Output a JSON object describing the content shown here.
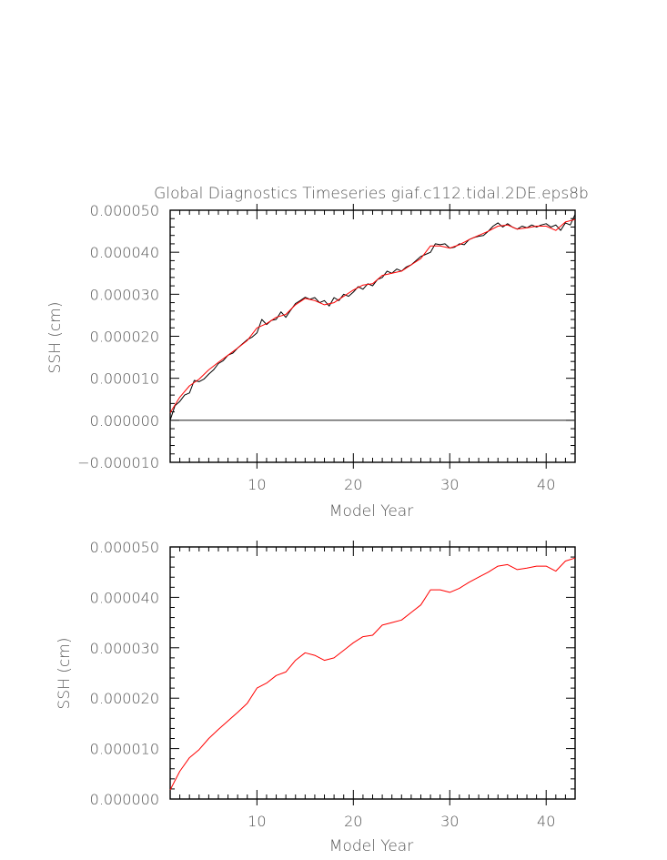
{
  "chart_data": [
    {
      "type": "line",
      "title": "Global Diagnostics Timeseries giaf.c112.tidal.2DE.eps8b",
      "xlabel": "Model Year",
      "ylabel": "SSH (cm)",
      "xlim": [
        1,
        43
      ],
      "ylim": [
        -1e-05,
        5e-05
      ],
      "x_ticks": [
        10,
        20,
        30,
        40
      ],
      "x_tick_labels": [
        "10",
        "20",
        "30",
        "40"
      ],
      "y_ticks": [
        -1e-05,
        0,
        1e-05,
        2e-05,
        3e-05,
        4e-05,
        5e-05
      ],
      "y_tick_labels": [
        "−0.000010",
        "0.000000",
        "0.000010",
        "0.000020",
        "0.000030",
        "0.000040",
        "0.000050"
      ],
      "zero_line": true,
      "grid": false,
      "legend": "none",
      "series": [
        {
          "color": "#000000",
          "resolution": "monthly",
          "x": [
            1.0,
            1.5,
            2.0,
            2.5,
            3.0,
            3.5,
            4.0,
            4.5,
            5.0,
            5.5,
            6.0,
            6.5,
            7.0,
            7.5,
            8.0,
            8.5,
            9.0,
            9.5,
            10.0,
            10.5,
            11.0,
            11.5,
            12.0,
            12.5,
            13.0,
            13.5,
            14.0,
            14.5,
            15.0,
            15.5,
            16.0,
            16.5,
            17.0,
            17.5,
            18.0,
            18.5,
            19.0,
            19.5,
            20.0,
            20.5,
            21.0,
            21.5,
            22.0,
            22.5,
            23.0,
            23.5,
            24.0,
            24.5,
            25.0,
            25.5,
            26.0,
            26.5,
            27.0,
            27.5,
            28.0,
            28.5,
            29.0,
            29.5,
            30.0,
            30.5,
            31.0,
            31.5,
            32.0,
            32.5,
            33.0,
            33.5,
            34.0,
            34.5,
            35.0,
            35.5,
            36.0,
            36.5,
            37.0,
            37.5,
            38.0,
            38.5,
            39.0,
            39.5,
            40.0,
            40.5,
            41.0,
            41.5,
            42.0,
            42.5,
            43.0
          ],
          "y": [
            0.0,
            3.5e-06,
            4.5e-06,
            6e-06,
            6.5e-06,
            9.5e-06,
            9.2e-06,
            9.8e-06,
            1.1e-05,
            1.2e-05,
            1.35e-05,
            1.42e-05,
            1.55e-05,
            1.6e-05,
            1.72e-05,
            1.82e-05,
            1.92e-05,
            1.98e-05,
            2.08e-05,
            2.4e-05,
            2.28e-05,
            2.38e-05,
            2.4e-05,
            2.58e-05,
            2.45e-05,
            2.62e-05,
            2.78e-05,
            2.85e-05,
            2.93e-05,
            2.88e-05,
            2.92e-05,
            2.8e-05,
            2.85e-05,
            2.72e-05,
            2.92e-05,
            2.85e-05,
            3e-05,
            2.95e-05,
            3.05e-05,
            3.18e-05,
            3.12e-05,
            3.25e-05,
            3.2e-05,
            3.35e-05,
            3.4e-05,
            3.55e-05,
            3.5e-05,
            3.6e-05,
            3.55e-05,
            3.65e-05,
            3.7e-05,
            3.8e-05,
            3.9e-05,
            3.95e-05,
            4e-05,
            4.2e-05,
            4.18e-05,
            4.2e-05,
            4.1e-05,
            4.12e-05,
            4.2e-05,
            4.18e-05,
            4.3e-05,
            4.35e-05,
            4.38e-05,
            4.4e-05,
            4.5e-05,
            4.62e-05,
            4.7e-05,
            4.6e-05,
            4.68e-05,
            4.6e-05,
            4.55e-05,
            4.62e-05,
            4.58e-05,
            4.65e-05,
            4.6e-05,
            4.65e-05,
            4.68e-05,
            4.6e-05,
            4.65e-05,
            4.52e-05,
            4.7e-05,
            4.65e-05,
            4.9e-05
          ]
        },
        {
          "color": "#ff0000",
          "resolution": "annual",
          "x": [
            1,
            2,
            3,
            4,
            5,
            6,
            7,
            8,
            9,
            10,
            11,
            12,
            13,
            14,
            15,
            16,
            17,
            18,
            19,
            20,
            21,
            22,
            23,
            24,
            25,
            26,
            27,
            28,
            29,
            30,
            31,
            32,
            33,
            34,
            35,
            36,
            37,
            38,
            39,
            40,
            41,
            42,
            43
          ],
          "y": [
            1.8e-06,
            5.5e-06,
            8.2e-06,
            9.8e-06,
            1.2e-05,
            1.38e-05,
            1.55e-05,
            1.72e-05,
            1.9e-05,
            2.2e-05,
            2.3e-05,
            2.45e-05,
            2.52e-05,
            2.75e-05,
            2.9e-05,
            2.85e-05,
            2.75e-05,
            2.8e-05,
            2.95e-05,
            3.1e-05,
            3.22e-05,
            3.25e-05,
            3.45e-05,
            3.5e-05,
            3.55e-05,
            3.7e-05,
            3.85e-05,
            4.15e-05,
            4.15e-05,
            4.1e-05,
            4.18e-05,
            4.3e-05,
            4.4e-05,
            4.5e-05,
            4.62e-05,
            4.65e-05,
            4.55e-05,
            4.58e-05,
            4.62e-05,
            4.62e-05,
            4.52e-05,
            4.72e-05,
            4.78e-05
          ]
        }
      ]
    },
    {
      "type": "line",
      "title": "",
      "xlabel": "Model Year",
      "ylabel": "SSH (cm)",
      "xlim": [
        1,
        43
      ],
      "ylim": [
        0,
        5e-05
      ],
      "x_ticks": [
        10,
        20,
        30,
        40
      ],
      "x_tick_labels": [
        "10",
        "20",
        "30",
        "40"
      ],
      "y_ticks": [
        0,
        1e-05,
        2e-05,
        3e-05,
        4e-05,
        5e-05
      ],
      "y_tick_labels": [
        "0.000000",
        "0.000010",
        "0.000020",
        "0.000030",
        "0.000040",
        "0.000050"
      ],
      "zero_line": false,
      "grid": false,
      "legend": "none",
      "series": [
        {
          "color": "#ff0000",
          "resolution": "annual",
          "x": [
            1,
            2,
            3,
            4,
            5,
            6,
            7,
            8,
            9,
            10,
            11,
            12,
            13,
            14,
            15,
            16,
            17,
            18,
            19,
            20,
            21,
            22,
            23,
            24,
            25,
            26,
            27,
            28,
            29,
            30,
            31,
            32,
            33,
            34,
            35,
            36,
            37,
            38,
            39,
            40,
            41,
            42,
            43
          ],
          "y": [
            1.8e-06,
            5.5e-06,
            8.2e-06,
            9.8e-06,
            1.2e-05,
            1.38e-05,
            1.55e-05,
            1.72e-05,
            1.9e-05,
            2.2e-05,
            2.3e-05,
            2.45e-05,
            2.52e-05,
            2.75e-05,
            2.9e-05,
            2.85e-05,
            2.75e-05,
            2.8e-05,
            2.95e-05,
            3.1e-05,
            3.22e-05,
            3.25e-05,
            3.45e-05,
            3.5e-05,
            3.55e-05,
            3.7e-05,
            3.85e-05,
            4.15e-05,
            4.15e-05,
            4.1e-05,
            4.18e-05,
            4.3e-05,
            4.4e-05,
            4.5e-05,
            4.62e-05,
            4.65e-05,
            4.55e-05,
            4.58e-05,
            4.62e-05,
            4.62e-05,
            4.52e-05,
            4.72e-05,
            4.78e-05
          ]
        }
      ]
    }
  ]
}
